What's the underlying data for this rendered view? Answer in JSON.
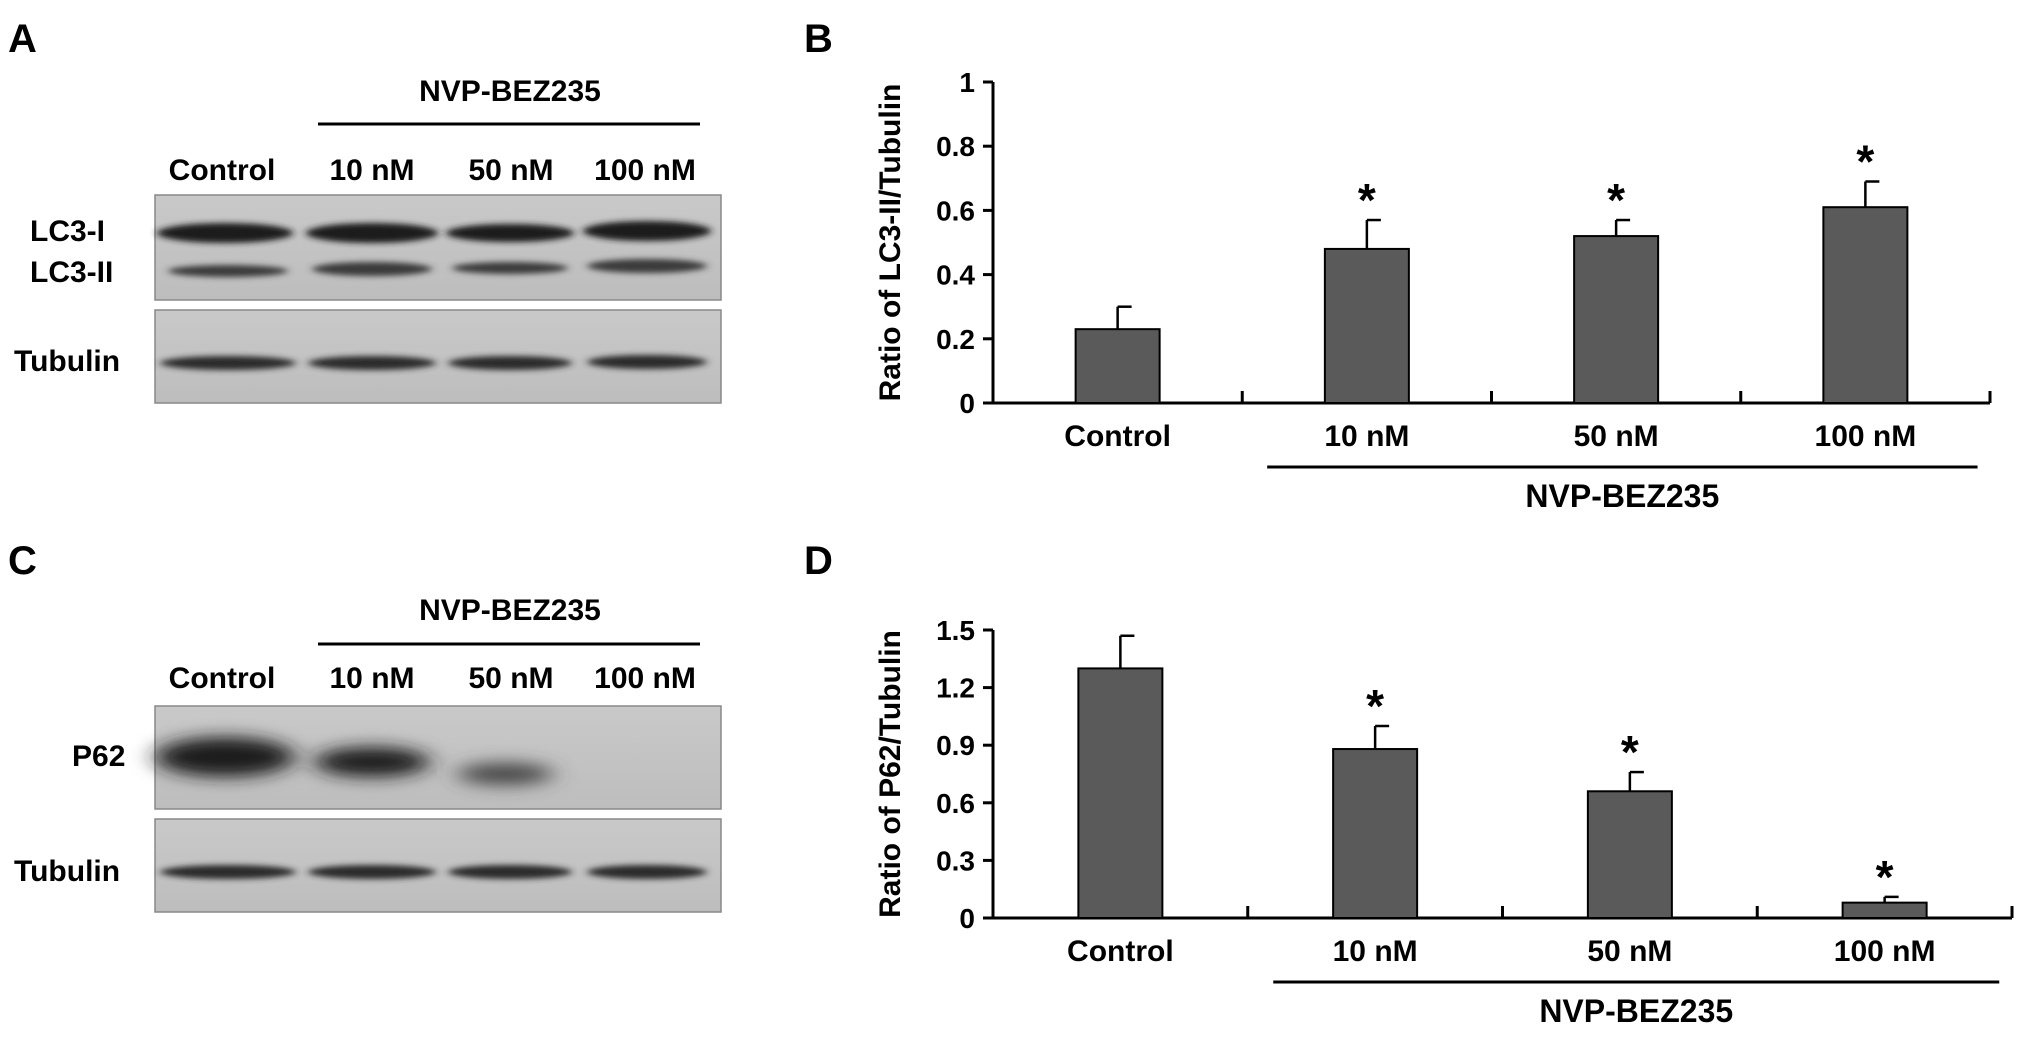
{
  "panels": {
    "A": {
      "letter": "A",
      "treatment": "NVP-BEZ235",
      "lanes": [
        "Control",
        "10 nM",
        "50 nM",
        "100 nM"
      ],
      "blot_labels": [
        "LC3-I",
        "LC3-II",
        "Tubulin"
      ]
    },
    "C": {
      "letter": "C",
      "treatment": "NVP-BEZ235",
      "lanes": [
        "Control",
        "10 nM",
        "50 nM",
        "100 nM"
      ],
      "blot_labels": [
        "P62",
        "Tubulin"
      ]
    },
    "B": {
      "letter": "B"
    },
    "D": {
      "letter": "D"
    }
  },
  "chart_data": [
    {
      "panel": "B",
      "type": "bar",
      "categories": [
        "Control",
        "10 nM",
        "50 nM",
        "100 nM"
      ],
      "values": [
        0.23,
        0.48,
        0.52,
        0.61
      ],
      "errors": [
        0.07,
        0.09,
        0.05,
        0.08
      ],
      "significant": [
        false,
        true,
        true,
        true
      ],
      "marker": "*",
      "ylabel": "Ratio of LC3-II/Tubulin",
      "ylim": [
        0,
        1
      ],
      "yticks": [
        "0",
        "0.2",
        "0.4",
        "0.6",
        "0.8",
        "1"
      ],
      "group_label": "NVP-BEZ235",
      "bar_color": "#5a5a5a"
    },
    {
      "panel": "D",
      "type": "bar",
      "categories": [
        "Control",
        "10 nM",
        "50 nM",
        "100 nM"
      ],
      "values": [
        1.3,
        0.88,
        0.66,
        0.08
      ],
      "errors": [
        0.17,
        0.12,
        0.1,
        0.03
      ],
      "significant": [
        false,
        true,
        true,
        true
      ],
      "marker": "*",
      "ylabel": "Ratio of P62/Tubulin",
      "ylim": [
        0,
        1.5
      ],
      "yticks": [
        "0",
        "0.3",
        "0.6",
        "0.9",
        "1.2",
        "1.5"
      ],
      "group_label": "NVP-BEZ235",
      "bar_color": "#5a5a5a"
    }
  ]
}
